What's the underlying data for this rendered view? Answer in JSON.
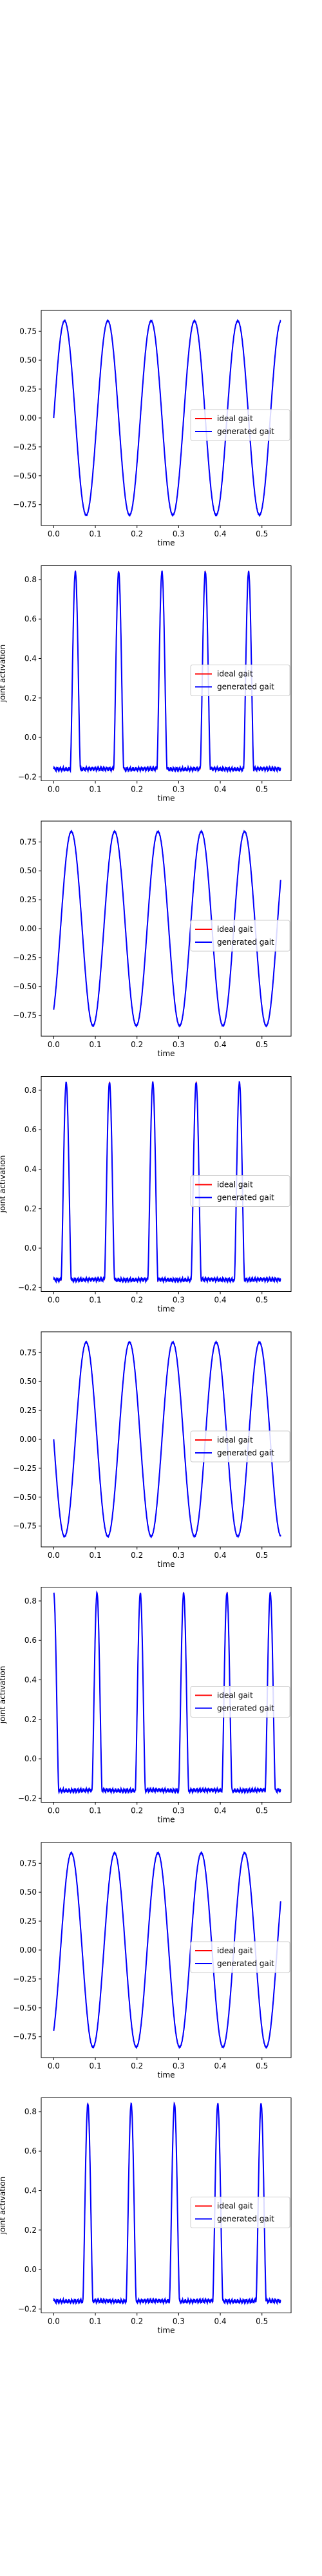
{
  "figure": {
    "legend_labels": [
      "ideal gait",
      "generated gait"
    ],
    "legend_colors": [
      "#ff0000",
      "#0000ff"
    ]
  },
  "chart_data": [
    {
      "type": "line",
      "xlabel": "time",
      "ylabel": "",
      "xlim": [
        -0.03,
        0.57
      ],
      "ylim": [
        -0.93,
        0.93
      ],
      "x_ticks": [
        0.0,
        0.1,
        0.2,
        0.3,
        0.4,
        0.5
      ],
      "x_tick_labels": [
        "0.0",
        "0.1",
        "0.2",
        "0.3",
        "0.4",
        "0.5"
      ],
      "y_ticks": [
        -0.75,
        -0.5,
        -0.25,
        0.0,
        0.25,
        0.5,
        0.75
      ],
      "y_tick_labels": [
        "−0.75",
        "−0.50",
        "−0.25",
        "0.00",
        "0.25",
        "0.50",
        "0.75"
      ],
      "legend_position": "center-right",
      "waveform": {
        "shape": "sine",
        "amplitude": 0.84,
        "offset": 0.0,
        "period": 0.104,
        "start_x": 0.0,
        "start_value": 0.0,
        "x_start": 0.0,
        "x_end": 0.545
      },
      "series": [
        {
          "name": "ideal gait",
          "color": "#ff0000"
        },
        {
          "name": "generated gait",
          "color": "#0000ff"
        }
      ]
    },
    {
      "type": "line",
      "xlabel": "time",
      "ylabel": "joint activation",
      "xlim": [
        -0.03,
        0.57
      ],
      "ylim": [
        -0.22,
        0.87
      ],
      "x_ticks": [
        0.0,
        0.1,
        0.2,
        0.3,
        0.4,
        0.5
      ],
      "x_tick_labels": [
        "0.0",
        "0.1",
        "0.2",
        "0.3",
        "0.4",
        "0.5"
      ],
      "y_ticks": [
        -0.2,
        0.0,
        0.2,
        0.4,
        0.6,
        0.8
      ],
      "y_tick_labels": [
        "−0.2",
        "0.0",
        "0.2",
        "0.4",
        "0.6",
        "0.8"
      ],
      "legend_position": "center-right",
      "waveform": {
        "shape": "pulse",
        "base": -0.16,
        "peak": 0.84,
        "width": 0.024,
        "peaks_x": [
          0.052,
          0.156,
          0.26,
          0.364,
          0.468
        ],
        "x_start": 0.0,
        "x_end": 0.545
      },
      "series": [
        {
          "name": "ideal gait",
          "color": "#ff0000"
        },
        {
          "name": "generated gait",
          "color": "#0000ff"
        }
      ]
    },
    {
      "type": "line",
      "xlabel": "time",
      "ylabel": "",
      "xlim": [
        -0.03,
        0.57
      ],
      "ylim": [
        -0.93,
        0.93
      ],
      "x_ticks": [
        0.0,
        0.1,
        0.2,
        0.3,
        0.4,
        0.5
      ],
      "x_tick_labels": [
        "0.0",
        "0.1",
        "0.2",
        "0.3",
        "0.4",
        "0.5"
      ],
      "y_ticks": [
        -0.75,
        -0.5,
        -0.25,
        0.0,
        0.25,
        0.5,
        0.75
      ],
      "y_tick_labels": [
        "−0.75",
        "−0.50",
        "−0.25",
        "0.00",
        "0.25",
        "0.50",
        "0.75"
      ],
      "legend_position": "center-right",
      "waveform": {
        "shape": "sine",
        "amplitude": 0.84,
        "offset": 0.0,
        "period": 0.104,
        "start_x": 0.0,
        "start_value": -0.7,
        "x_start": 0.0,
        "x_end": 0.545
      },
      "series": [
        {
          "name": "ideal gait",
          "color": "#ff0000"
        },
        {
          "name": "generated gait",
          "color": "#0000ff"
        }
      ]
    },
    {
      "type": "line",
      "xlabel": "time",
      "ylabel": "joint activation",
      "xlim": [
        -0.03,
        0.57
      ],
      "ylim": [
        -0.22,
        0.87
      ],
      "x_ticks": [
        0.0,
        0.1,
        0.2,
        0.3,
        0.4,
        0.5
      ],
      "x_tick_labels": [
        "0.0",
        "0.1",
        "0.2",
        "0.3",
        "0.4",
        "0.5"
      ],
      "y_ticks": [
        -0.2,
        0.0,
        0.2,
        0.4,
        0.6,
        0.8
      ],
      "y_tick_labels": [
        "−0.2",
        "0.0",
        "0.2",
        "0.4",
        "0.6",
        "0.8"
      ],
      "legend_position": "center-right",
      "waveform": {
        "shape": "pulse",
        "base": -0.16,
        "peak": 0.84,
        "width": 0.024,
        "peaks_x": [
          0.03,
          0.134,
          0.238,
          0.342,
          0.446
        ],
        "x_start": 0.0,
        "x_end": 0.545
      },
      "series": [
        {
          "name": "ideal gait",
          "color": "#ff0000"
        },
        {
          "name": "generated gait",
          "color": "#0000ff"
        }
      ]
    },
    {
      "type": "line",
      "xlabel": "time",
      "ylabel": "",
      "xlim": [
        -0.03,
        0.57
      ],
      "ylim": [
        -0.93,
        0.93
      ],
      "x_ticks": [
        0.0,
        0.1,
        0.2,
        0.3,
        0.4,
        0.5
      ],
      "x_tick_labels": [
        "0.0",
        "0.1",
        "0.2",
        "0.3",
        "0.4",
        "0.5"
      ],
      "y_ticks": [
        -0.75,
        -0.5,
        -0.25,
        0.0,
        0.25,
        0.5,
        0.75
      ],
      "y_tick_labels": [
        "−0.75",
        "−0.50",
        "−0.25",
        "0.00",
        "0.25",
        "0.50",
        "0.75"
      ],
      "legend_position": "center-right",
      "waveform": {
        "shape": "sine",
        "amplitude": 0.84,
        "offset": 0.0,
        "period": 0.104,
        "start_x": 0.0,
        "start_value": 0.0,
        "start_descending": true,
        "x_start": 0.0,
        "x_end": 0.545
      },
      "series": [
        {
          "name": "ideal gait",
          "color": "#ff0000"
        },
        {
          "name": "generated gait",
          "color": "#0000ff"
        }
      ]
    },
    {
      "type": "line",
      "xlabel": "time",
      "ylabel": "joint activation",
      "xlim": [
        -0.03,
        0.57
      ],
      "ylim": [
        -0.22,
        0.87
      ],
      "x_ticks": [
        0.0,
        0.1,
        0.2,
        0.3,
        0.4,
        0.5
      ],
      "x_tick_labels": [
        "0.0",
        "0.1",
        "0.2",
        "0.3",
        "0.4",
        "0.5"
      ],
      "y_ticks": [
        -0.2,
        0.0,
        0.2,
        0.4,
        0.6,
        0.8
      ],
      "y_tick_labels": [
        "−0.2",
        "0.0",
        "0.2",
        "0.4",
        "0.6",
        "0.8"
      ],
      "legend_position": "center-right",
      "waveform": {
        "shape": "pulse",
        "base": -0.16,
        "peak": 0.84,
        "width": 0.024,
        "peaks_x": [
          0.0,
          0.104,
          0.208,
          0.312,
          0.416,
          0.52
        ],
        "x_start": 0.0,
        "x_end": 0.545
      },
      "series": [
        {
          "name": "ideal gait",
          "color": "#ff0000"
        },
        {
          "name": "generated gait",
          "color": "#0000ff"
        }
      ]
    },
    {
      "type": "line",
      "xlabel": "time",
      "ylabel": "",
      "xlim": [
        -0.03,
        0.57
      ],
      "ylim": [
        -0.93,
        0.93
      ],
      "x_ticks": [
        0.0,
        0.1,
        0.2,
        0.3,
        0.4,
        0.5
      ],
      "x_tick_labels": [
        "0.0",
        "0.1",
        "0.2",
        "0.3",
        "0.4",
        "0.5"
      ],
      "y_ticks": [
        -0.75,
        -0.5,
        -0.25,
        0.0,
        0.25,
        0.5,
        0.75
      ],
      "y_tick_labels": [
        "−0.75",
        "−0.50",
        "−0.25",
        "0.00",
        "0.25",
        "0.50",
        "0.75"
      ],
      "legend_position": "center-right",
      "waveform": {
        "shape": "sine",
        "amplitude": 0.84,
        "offset": 0.0,
        "period": 0.104,
        "start_x": 0.0,
        "start_value": -0.7,
        "start_descending": false,
        "x_start": 0.0,
        "x_end": 0.545
      },
      "series": [
        {
          "name": "ideal gait",
          "color": "#ff0000"
        },
        {
          "name": "generated gait",
          "color": "#0000ff"
        }
      ]
    },
    {
      "type": "line",
      "xlabel": "time",
      "ylabel": "joint activation",
      "xlim": [
        -0.03,
        0.57
      ],
      "ylim": [
        -0.22,
        0.87
      ],
      "x_ticks": [
        0.0,
        0.1,
        0.2,
        0.3,
        0.4,
        0.5
      ],
      "x_tick_labels": [
        "0.0",
        "0.1",
        "0.2",
        "0.3",
        "0.4",
        "0.5"
      ],
      "y_ticks": [
        -0.2,
        0.0,
        0.2,
        0.4,
        0.6,
        0.8
      ],
      "y_tick_labels": [
        "−0.2",
        "0.0",
        "0.2",
        "0.4",
        "0.6",
        "0.8"
      ],
      "legend_position": "center-right",
      "waveform": {
        "shape": "pulse",
        "base": -0.16,
        "peak": 0.84,
        "width": 0.024,
        "peaks_x": [
          0.082,
          0.186,
          0.29,
          0.394,
          0.498
        ],
        "x_start": 0.0,
        "x_end": 0.545
      },
      "series": [
        {
          "name": "ideal gait",
          "color": "#ff0000"
        },
        {
          "name": "generated gait",
          "color": "#0000ff"
        }
      ]
    }
  ]
}
